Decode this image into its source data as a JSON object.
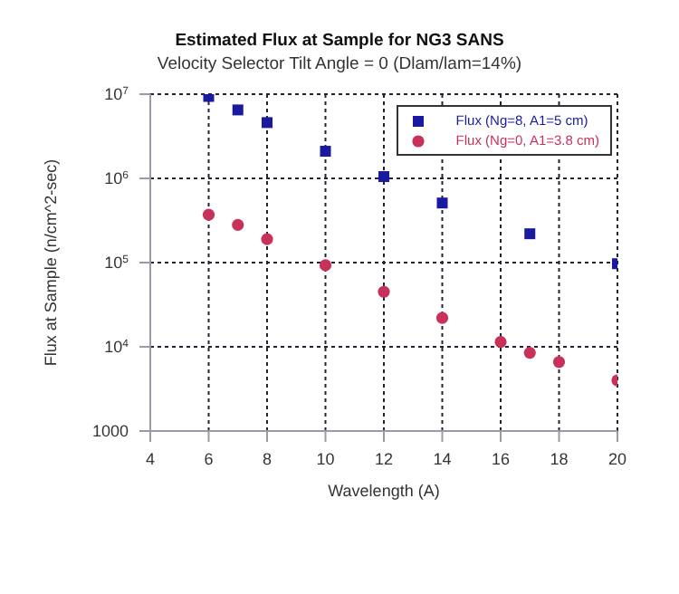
{
  "chart_data": {
    "type": "scatter",
    "title": "Estimated Flux at Sample for NG3 SANS",
    "subtitle": "Velocity Selector Tilt Angle = 0 (Dlam/lam=14%)",
    "xlabel": "Wavelength (A)",
    "ylabel": "Flux at Sample (n/cm^2-sec)",
    "log": "y",
    "grid": true,
    "legend": "top right",
    "xlim": [
      4,
      20
    ],
    "xticks": [
      4,
      6,
      8,
      10,
      12,
      14,
      16,
      18,
      20
    ],
    "ylim": [
      1000,
      10000000
    ],
    "yticks": [
      1000,
      {
        "value": 10000,
        "label": "10$^{4}$"
      },
      {
        "value": 100000,
        "label": "10$^{5}$"
      },
      {
        "value": 1000000,
        "label": "10$^{6}$"
      },
      {
        "value": 10000000,
        "label": "10$^{7}$"
      }
    ],
    "series": [
      {
        "name": "Flux (Ng=8, A1=5 cm)",
        "color": "#1a1aa0",
        "marker": "square",
        "x": [
          6,
          7,
          8,
          10,
          12,
          14,
          17,
          20
        ],
        "values": [
          9400000,
          6500000,
          4600000,
          2100000,
          1050000,
          510000,
          220000,
          97000
        ]
      },
      {
        "name": "Flux (Ng=0, A1=3.8 cm)",
        "color": "#c8325a",
        "marker": "circle",
        "x": [
          6,
          7,
          8,
          10,
          12,
          14,
          16,
          17,
          18,
          20
        ],
        "values": [
          370000,
          280000,
          190000,
          93000,
          45000,
          22000,
          11400,
          8500,
          6600,
          4000
        ]
      }
    ]
  }
}
